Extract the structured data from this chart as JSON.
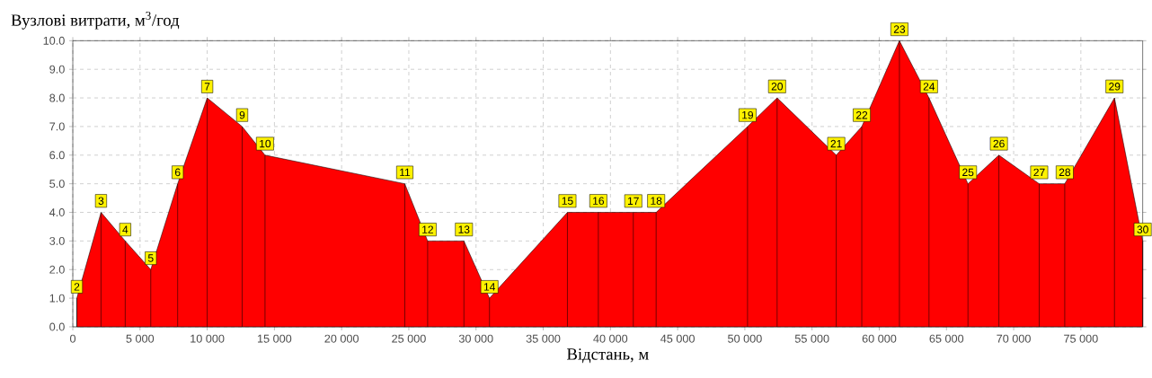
{
  "chart_data": {
    "type": "area",
    "ylabel": "Вузлові витрати, м$^{3}$/год",
    "xlabel": "Відстань, м",
    "x": [
      300,
      2100,
      3900,
      5800,
      7800,
      10000,
      12600,
      14300,
      24700,
      26400,
      29100,
      31000,
      36800,
      39100,
      41700,
      43400,
      50200,
      52400,
      56800,
      58700,
      61500,
      63700,
      66600,
      68900,
      71900,
      73800,
      77500,
      79600
    ],
    "series": [
      {
        "color": "#ff0000",
        "values": [
          1,
          4,
          3,
          2,
          5,
          8,
          7,
          6,
          5,
          3,
          3,
          1,
          4,
          4,
          4,
          4,
          7,
          8,
          6,
          7,
          10,
          8,
          5,
          6,
          5,
          5,
          8,
          3
        ]
      }
    ],
    "annotations": [
      {
        "text": "2",
        "x": 300,
        "y": 1
      },
      {
        "text": "3",
        "x": 2100,
        "y": 4
      },
      {
        "text": "4",
        "x": 3900,
        "y": 3
      },
      {
        "text": "5",
        "x": 5800,
        "y": 2
      },
      {
        "text": "6",
        "x": 7800,
        "y": 5
      },
      {
        "text": "7",
        "x": 10000,
        "y": 8
      },
      {
        "text": "9",
        "x": 12600,
        "y": 7
      },
      {
        "text": "10",
        "x": 14300,
        "y": 6
      },
      {
        "text": "11",
        "x": 24700,
        "y": 5
      },
      {
        "text": "12",
        "x": 26400,
        "y": 3
      },
      {
        "text": "13",
        "x": 29100,
        "y": 3
      },
      {
        "text": "14",
        "x": 31000,
        "y": 1
      },
      {
        "text": "15",
        "x": 36800,
        "y": 4
      },
      {
        "text": "16",
        "x": 39100,
        "y": 4
      },
      {
        "text": "17",
        "x": 41700,
        "y": 4
      },
      {
        "text": "18",
        "x": 43400,
        "y": 4
      },
      {
        "text": "19",
        "x": 50200,
        "y": 7
      },
      {
        "text": "20",
        "x": 52400,
        "y": 8
      },
      {
        "text": "21",
        "x": 56800,
        "y": 6
      },
      {
        "text": "22",
        "x": 58700,
        "y": 7
      },
      {
        "text": "23",
        "x": 61500,
        "y": 10
      },
      {
        "text": "24",
        "x": 63700,
        "y": 8
      },
      {
        "text": "25",
        "x": 66600,
        "y": 5
      },
      {
        "text": "26",
        "x": 68900,
        "y": 6
      },
      {
        "text": "27",
        "x": 71900,
        "y": 5
      },
      {
        "text": "28",
        "x": 73800,
        "y": 5
      },
      {
        "text": "29",
        "x": 77500,
        "y": 8
      },
      {
        "text": "30",
        "x": 79600,
        "y": 3
      }
    ],
    "xlim": [
      0,
      79600
    ],
    "ylim": [
      0,
      10
    ],
    "xticks": [
      0,
      {
        "value": 5000,
        "label": "5 000"
      },
      {
        "value": 10000,
        "label": "10 000"
      },
      {
        "value": 15000,
        "label": "15 000"
      },
      {
        "value": 20000,
        "label": "20 000"
      },
      {
        "value": 25000,
        "label": "25 000"
      },
      {
        "value": 30000,
        "label": "30 000"
      },
      {
        "value": 35000,
        "label": "35 000"
      },
      {
        "value": 40000,
        "label": "40 000"
      },
      {
        "value": 45000,
        "label": "45 000"
      },
      {
        "value": 50000,
        "label": "50 000"
      },
      {
        "value": 55000,
        "label": "55 000"
      },
      {
        "value": 60000,
        "label": "60 000"
      },
      {
        "value": 65000,
        "label": "65 000"
      },
      {
        "value": 70000,
        "label": "70 000"
      },
      {
        "value": 75000,
        "label": "75 000"
      }
    ],
    "yticks": [
      {
        "value": 0,
        "label": "0.0"
      },
      {
        "value": 1,
        "label": "1.0"
      },
      {
        "value": 2,
        "label": "2.0"
      },
      {
        "value": 3,
        "label": "3.0"
      },
      {
        "value": 4,
        "label": "4.0"
      },
      {
        "value": 5,
        "label": "5.0"
      },
      {
        "value": 6,
        "label": "6.0"
      },
      {
        "value": 7,
        "label": "7.0"
      },
      {
        "value": 8,
        "label": "8.0"
      },
      {
        "value": 9,
        "label": "9.0"
      },
      {
        "value": 10,
        "label": "10.0"
      }
    ],
    "grid": true,
    "line_style": "solid",
    "marker": "none"
  }
}
